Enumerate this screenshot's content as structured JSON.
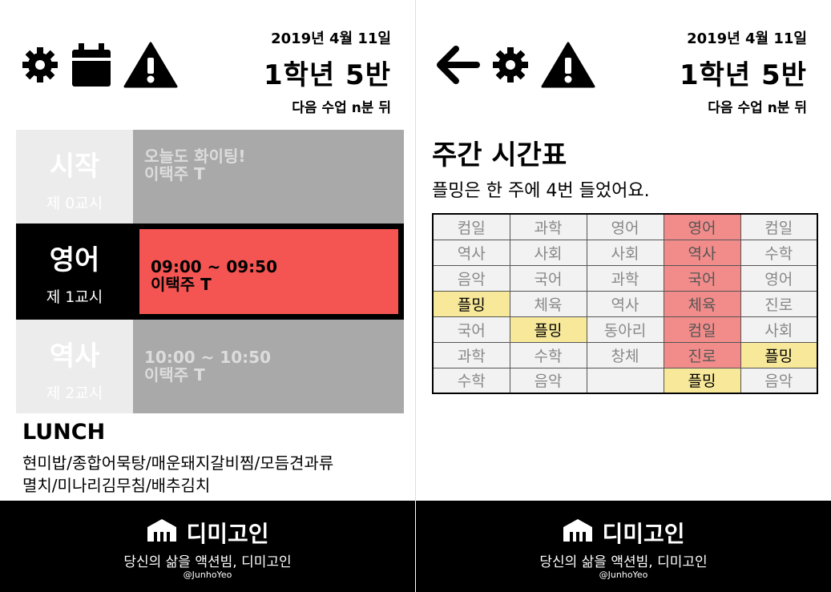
{
  "header": {
    "date": "2019년 4월 11일",
    "class_name": "1학년 5반",
    "next_class": "다음 수업 n분 뒤"
  },
  "left": {
    "periods": [
      {
        "name": "시작",
        "number": "제 0교시",
        "line1": "오늘도 화이팅!",
        "line2": "이택주 T"
      },
      {
        "name": "영어",
        "number": "제 1교시",
        "line1": "09:00 ~ 09:50",
        "line2": "이택주 T"
      },
      {
        "name": "역사",
        "number": "제 2교시",
        "line1": "10:00 ~ 10:50",
        "line2": "이택주 T"
      }
    ],
    "lunch": {
      "title": "LUNCH",
      "line1": "현미밥/종합어묵탕/매운돼지갈비찜/모듬견과류",
      "line2": "멸치/미나리김무침/배추김치"
    }
  },
  "right": {
    "title": "주간 시간표",
    "subtitle": "플밍은 한 주에 4번 들었어요.",
    "timetable": [
      [
        "컴일",
        "과학",
        "영어",
        "영어",
        "컴일"
      ],
      [
        "역사",
        "사회",
        "사회",
        "역사",
        "수학"
      ],
      [
        "음악",
        "국어",
        "과학",
        "국어",
        "영어"
      ],
      [
        "플밍",
        "체육",
        "역사",
        "체육",
        "진로"
      ],
      [
        "국어",
        "플밍",
        "동아리",
        "컴일",
        "사회"
      ],
      [
        "과학",
        "수학",
        "창체",
        "진로",
        "플밍"
      ],
      [
        "수학",
        "음악",
        "",
        "플밍",
        "음악"
      ]
    ],
    "highlight_subject": "플밍"
  },
  "footer": {
    "brand": "디미고인",
    "slogan": "당신의 삶을 액션빔, 디미고인",
    "author": "@JunhoYeo"
  },
  "colors": {
    "accent_red": "#f45552",
    "today_column": "#f28c8a",
    "highlight_yellow": "#f7e89a",
    "inactive_gray": "#a9a9a9"
  },
  "icons": [
    "gear-icon",
    "calendar-icon",
    "warning-icon",
    "back-arrow-icon",
    "school-logo-icon"
  ]
}
